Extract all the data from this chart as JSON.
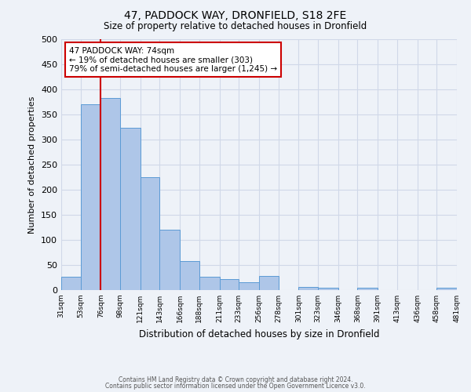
{
  "title": "47, PADDOCK WAY, DRONFIELD, S18 2FE",
  "subtitle": "Size of property relative to detached houses in Dronfield",
  "xlabel": "Distribution of detached houses by size in Dronfield",
  "ylabel": "Number of detached properties",
  "bin_labels": [
    "31sqm",
    "53sqm",
    "76sqm",
    "98sqm",
    "121sqm",
    "143sqm",
    "166sqm",
    "188sqm",
    "211sqm",
    "233sqm",
    "256sqm",
    "278sqm",
    "301sqm",
    "323sqm",
    "346sqm",
    "368sqm",
    "391sqm",
    "413sqm",
    "436sqm",
    "458sqm",
    "481sqm"
  ],
  "bin_edges": [
    31,
    53,
    76,
    98,
    121,
    143,
    166,
    188,
    211,
    233,
    256,
    278,
    301,
    323,
    346,
    368,
    391,
    413,
    436,
    458,
    481
  ],
  "bar_heights": [
    27,
    370,
    383,
    323,
    225,
    120,
    58,
    27,
    22,
    15,
    28,
    0,
    7,
    4,
    0,
    4,
    0,
    0,
    0,
    5
  ],
  "bar_color": "#aec6e8",
  "bar_edge_color": "#5b9bd5",
  "ylim": [
    0,
    500
  ],
  "yticks": [
    0,
    50,
    100,
    150,
    200,
    250,
    300,
    350,
    400,
    450,
    500
  ],
  "vline_x": 76,
  "vline_color": "#cc0000",
  "annotation_line1": "47 PADDOCK WAY: 74sqm",
  "annotation_line2": "← 19% of detached houses are smaller (303)",
  "annotation_line3": "79% of semi-detached houses are larger (1,245) →",
  "annotation_box_color": "#ffffff",
  "annotation_box_edge_color": "#cc0000",
  "footer1": "Contains HM Land Registry data © Crown copyright and database right 2024.",
  "footer2": "Contains public sector information licensed under the Open Government Licence v3.0.",
  "bg_color": "#eef2f8",
  "grid_color": "#d0d8e8",
  "fig_width": 6.0,
  "fig_height": 5.0
}
